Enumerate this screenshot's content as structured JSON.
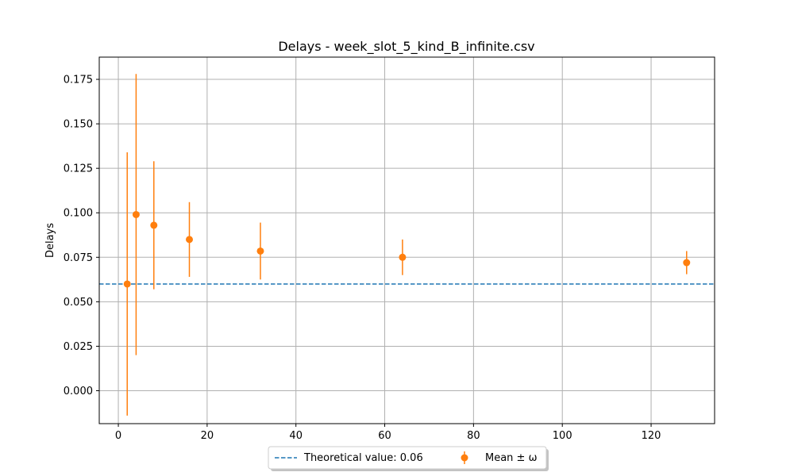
{
  "chart_data": {
    "type": "scatter",
    "title": "Delays - week_slot_5_kind_B_infinite.csv",
    "xlabel": "",
    "ylabel": "Delays",
    "xlim": [
      -4.3,
      134.3
    ],
    "ylim": [
      -0.0185,
      0.1875
    ],
    "xticks": [
      0,
      20,
      40,
      60,
      80,
      100,
      120
    ],
    "yticks": [
      0.0,
      0.025,
      0.05,
      0.075,
      0.1,
      0.125,
      0.15,
      0.175
    ],
    "ytick_labels": [
      "0.000",
      "0.025",
      "0.050",
      "0.075",
      "0.100",
      "0.125",
      "0.150",
      "0.175"
    ],
    "grid": true,
    "theoretical": {
      "name": "Theoretical value: 0.06",
      "value": 0.06,
      "color": "#1f77b4",
      "style": "dashed"
    },
    "series": [
      {
        "name": "Mean ± ω",
        "color": "#ff7f0e",
        "x": [
          2,
          4,
          8,
          16,
          32,
          64,
          128
        ],
        "y": [
          0.06,
          0.099,
          0.093,
          0.085,
          0.0785,
          0.075,
          0.072
        ],
        "err": [
          0.074,
          0.079,
          0.036,
          0.021,
          0.016,
          0.01,
          0.0065
        ]
      }
    ],
    "legend_placement": "bottom-center"
  }
}
